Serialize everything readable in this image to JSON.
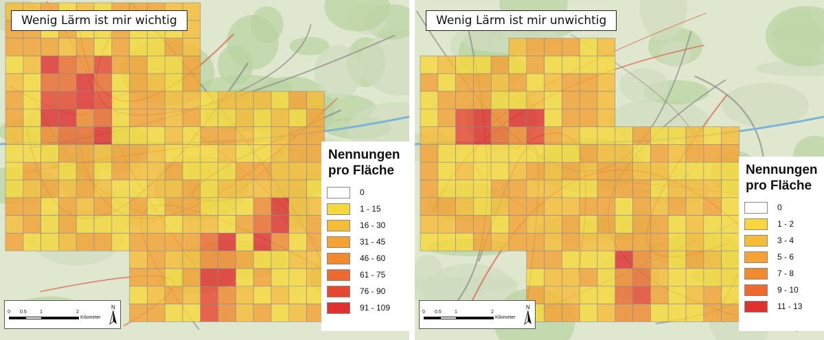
{
  "panels": [
    {
      "id": "left",
      "title": "Wenig Lärm ist mir wichtig",
      "legend": {
        "title_line1": "Nennungen",
        "title_line2": "pro Fläche",
        "classes": [
          {
            "label": "0",
            "color": "#ffffff"
          },
          {
            "label": "1 - 15",
            "color": "#f7d83c"
          },
          {
            "label": "16 - 30",
            "color": "#f5bc37"
          },
          {
            "label": "31 - 45",
            "color": "#f3a233"
          },
          {
            "label": "46 - 60",
            "color": "#ef8a31"
          },
          {
            "label": "61 - 75",
            "color": "#ec6a30"
          },
          {
            "label": "76 - 90",
            "color": "#e64730"
          },
          {
            "label": "91 - 109",
            "color": "#e03131"
          }
        ]
      },
      "scalebar": {
        "ticks": [
          "0",
          "0.5",
          "1",
          "2"
        ],
        "unit": "Kilometer",
        "north": "N"
      }
    },
    {
      "id": "right",
      "title": "Wenig Lärm ist mir unwichtig",
      "legend": {
        "title_line1": "Nennungen",
        "title_line2": "pro Fläche",
        "classes": [
          {
            "label": "0",
            "color": "#ffffff"
          },
          {
            "label": "1 - 2",
            "color": "#f7d83c"
          },
          {
            "label": "3 - 4",
            "color": "#f5bc37"
          },
          {
            "label": "5 - 6",
            "color": "#f3a233"
          },
          {
            "label": "7 - 8",
            "color": "#ef8a31"
          },
          {
            "label": "9 - 10",
            "color": "#ec6a30"
          },
          {
            "label": "11 - 13",
            "color": "#e03131"
          }
        ]
      },
      "scalebar": {
        "ticks": [
          "0",
          "0.5",
          "1",
          "2"
        ],
        "unit": "Kilometer",
        "north": "N"
      }
    }
  ]
}
